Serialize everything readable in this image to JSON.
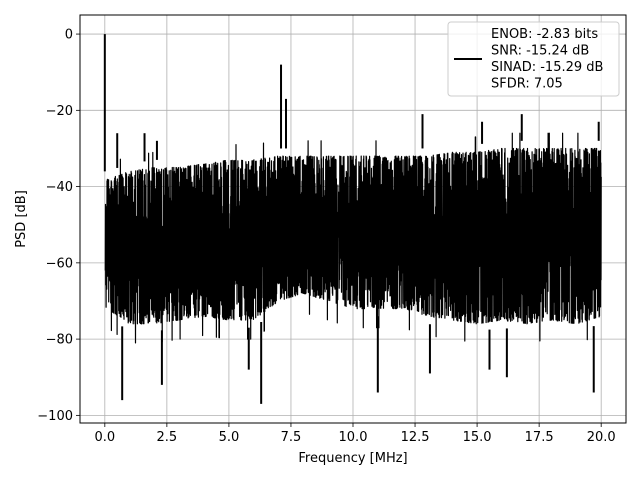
{
  "chart_data": {
    "type": "line",
    "title": "",
    "xlabel": "Frequency [MHz]",
    "ylabel": "PSD [dB]",
    "xlim": [
      -1,
      21
    ],
    "ylim": [
      -102,
      5
    ],
    "grid": true,
    "legend_placement": "top-right",
    "x_ticks": [
      0.0,
      2.5,
      5.0,
      7.5,
      10.0,
      12.5,
      15.0,
      17.5,
      20.0
    ],
    "x_tick_labels": [
      "0.0",
      "2.5",
      "5.0",
      "7.5",
      "10.0",
      "12.5",
      "15.0",
      "17.5",
      "20.0"
    ],
    "y_ticks": [
      0,
      -20,
      -40,
      -60,
      -80,
      -100
    ],
    "y_tick_labels": [
      "0",
      "−20",
      "−40",
      "−60",
      "−80",
      "−100"
    ],
    "series": [
      {
        "color": "#000000",
        "noise_envelope": {
          "x": [
            0.1,
            1,
            2,
            3,
            4,
            5,
            6,
            7,
            8,
            9,
            10,
            11,
            12,
            13,
            14,
            15,
            16,
            17,
            18,
            19,
            20
          ],
          "upper": [
            -38,
            -36,
            -35,
            -35,
            -34,
            -33,
            -33,
            -32,
            -32,
            -32,
            -32,
            -32,
            -32,
            -32,
            -31,
            -31,
            -30,
            -30,
            -30,
            -30,
            -30
          ],
          "lower": [
            -72,
            -76,
            -76,
            -75,
            -74,
            -75,
            -75,
            -70,
            -68,
            -70,
            -72,
            -72,
            -72,
            -74,
            -75,
            -76,
            -75,
            -76,
            -75,
            -76,
            -74
          ]
        },
        "peaks": [
          {
            "x": 0.0,
            "y": 0
          },
          {
            "x": 7.1,
            "y": -8
          },
          {
            "x": 7.3,
            "y": -17
          },
          {
            "x": 12.8,
            "y": -21
          },
          {
            "x": 16.8,
            "y": -21
          },
          {
            "x": 1.6,
            "y": -26
          },
          {
            "x": 0.5,
            "y": -26
          },
          {
            "x": 2.1,
            "y": -28
          },
          {
            "x": 15.2,
            "y": -23
          },
          {
            "x": 19.9,
            "y": -23
          }
        ],
        "dips": [
          {
            "x": 0.7,
            "y": -96
          },
          {
            "x": 6.3,
            "y": -97
          },
          {
            "x": 11.0,
            "y": -94
          },
          {
            "x": 13.1,
            "y": -89
          },
          {
            "x": 15.5,
            "y": -88
          },
          {
            "x": 19.7,
            "y": -94
          },
          {
            "x": 2.3,
            "y": -92
          },
          {
            "x": 5.8,
            "y": -88
          },
          {
            "x": 16.2,
            "y": -90
          }
        ]
      }
    ],
    "legend": {
      "entries": [
        "ENOB: -2.83 bits",
        "SNR: -15.24 dB",
        "SINAD: -15.29 dB",
        "SFDR: 7.05"
      ]
    }
  }
}
